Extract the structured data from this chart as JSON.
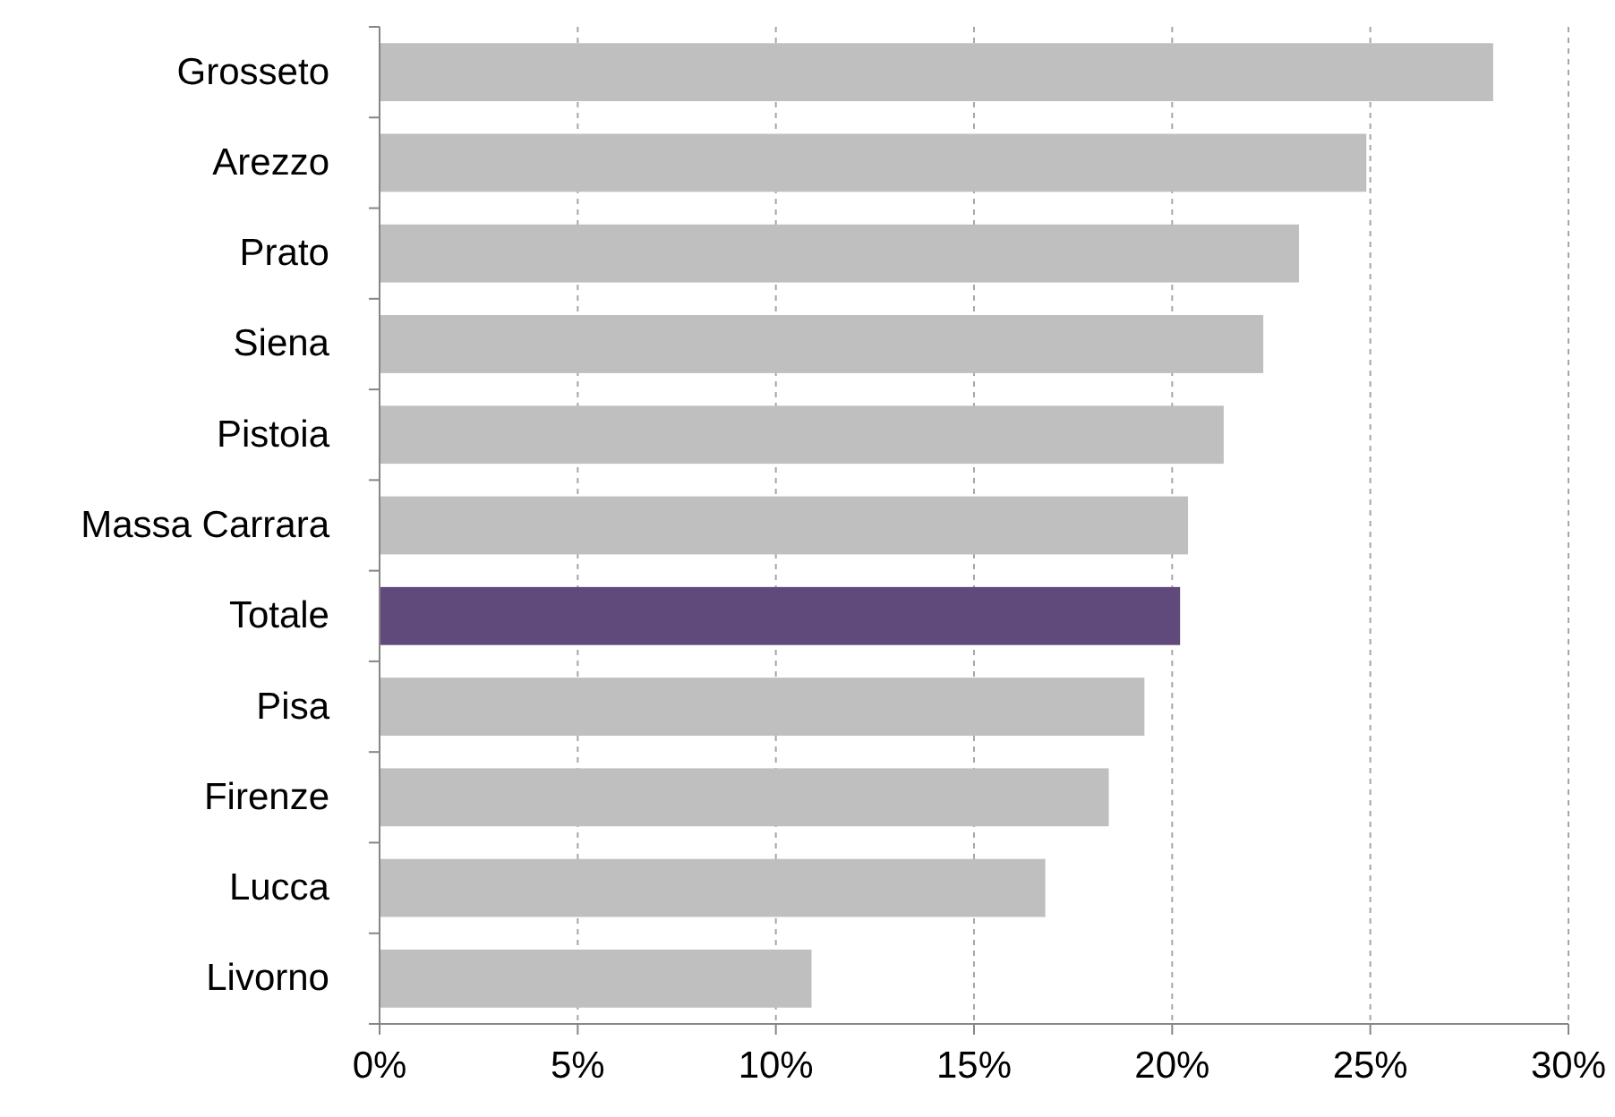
{
  "chart_data": {
    "type": "bar",
    "orientation": "horizontal",
    "categories": [
      "Grosseto",
      "Arezzo",
      "Prato",
      "Siena",
      "Pistoia",
      "Massa Carrara",
      "Totale",
      "Pisa",
      "Firenze",
      "Lucca",
      "Livorno"
    ],
    "values": [
      28.1,
      24.9,
      23.2,
      22.3,
      21.3,
      20.4,
      20.2,
      19.3,
      18.4,
      16.8,
      10.9
    ],
    "colors": [
      "#bfbfbf",
      "#bfbfbf",
      "#bfbfbf",
      "#bfbfbf",
      "#bfbfbf",
      "#bfbfbf",
      "#604a7b",
      "#bfbfbf",
      "#bfbfbf",
      "#bfbfbf",
      "#bfbfbf"
    ],
    "xlim": [
      0,
      30
    ],
    "xticks": [
      {
        "value": 0,
        "label": "0%"
      },
      {
        "value": 5,
        "label": "5%"
      },
      {
        "value": 10,
        "label": "10%"
      },
      {
        "value": 15,
        "label": "15%"
      },
      {
        "value": 20,
        "label": "20%"
      },
      {
        "value": 25,
        "label": "25%"
      },
      {
        "value": 30,
        "label": "30%"
      }
    ],
    "grid": "x"
  }
}
